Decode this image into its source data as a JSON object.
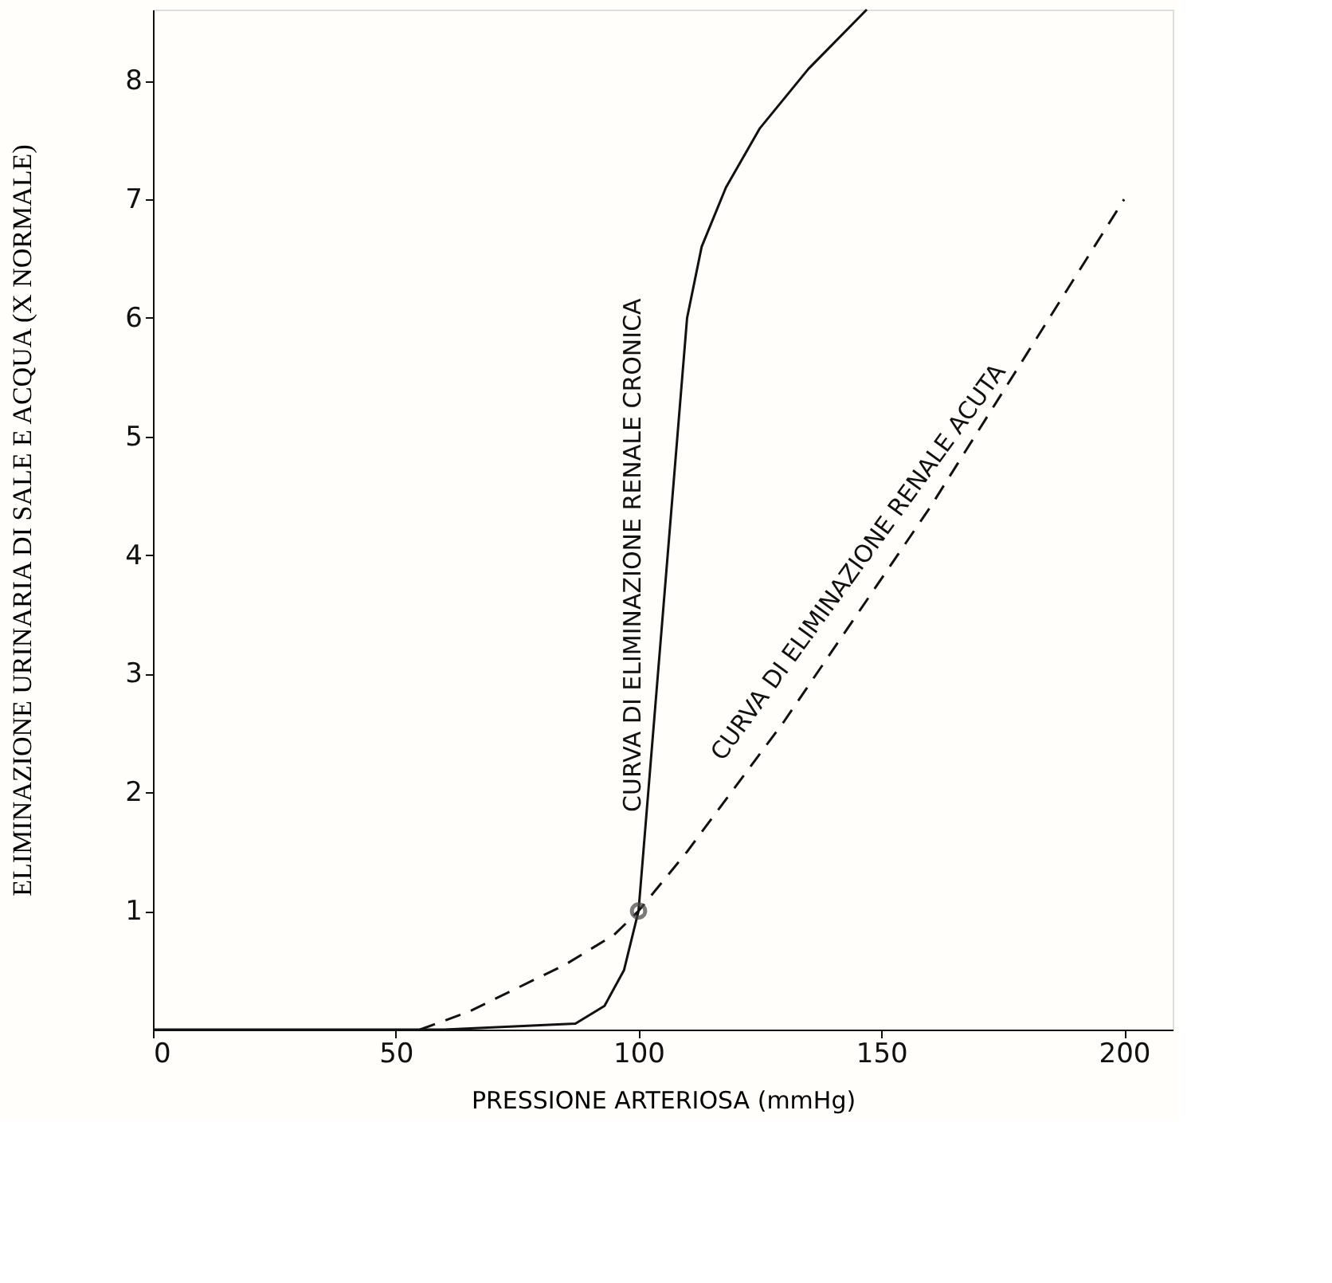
{
  "chart_data": {
    "type": "line",
    "xlabel": "PRESSIONE ARTERIOSA (mmHg)",
    "ylabel": "ELIMINAZIONE URINARIA DI SALE E ACQUA (X NORMALE)",
    "xlim": [
      0,
      210
    ],
    "ylim": [
      0,
      8.6
    ],
    "xticks": [
      0,
      50,
      100,
      150,
      200
    ],
    "yticks": [
      1,
      2,
      3,
      4,
      5,
      6,
      7,
      8
    ],
    "grid": false,
    "series": [
      {
        "name": "CURVA DI ELIMINAZIONE RENALE CRONICA",
        "color": "#111111",
        "line_style": "solid",
        "marker": "none",
        "x": [
          0,
          60,
          87,
          93,
          97,
          100,
          102,
          104,
          106,
          108,
          110,
          113,
          118,
          125,
          135,
          147
        ],
        "values": [
          0,
          0,
          0.05,
          0.2,
          0.5,
          1,
          2,
          3,
          4,
          5,
          6,
          6.6,
          7.1,
          7.6,
          8.1,
          8.6
        ]
      },
      {
        "name": "CURVA DI ELIMINAZIONE RENALE ACUTA",
        "color": "#111111",
        "line_style": "dashed",
        "marker": "none",
        "x": [
          55,
          65,
          75,
          85,
          95,
          100,
          110,
          120,
          130,
          140,
          150,
          160,
          170,
          180,
          190,
          200
        ],
        "values": [
          0,
          0.15,
          0.35,
          0.55,
          0.8,
          1,
          1.5,
          2.05,
          2.6,
          3.2,
          3.8,
          4.4,
          5.05,
          5.7,
          6.35,
          7
        ]
      },
      {
        "type": "scatter",
        "color": "#444444",
        "marker": "circle",
        "x": [
          100
        ],
        "values": [
          1
        ]
      }
    ]
  }
}
